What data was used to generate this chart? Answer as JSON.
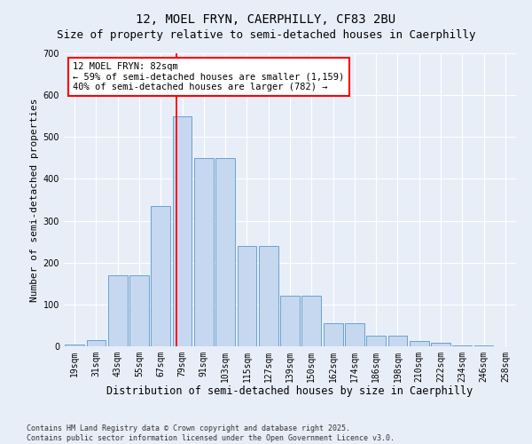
{
  "title1": "12, MOEL FRYN, CAERPHILLY, CF83 2BU",
  "title2": "Size of property relative to semi-detached houses in Caerphilly",
  "xlabel": "Distribution of semi-detached houses by size in Caerphilly",
  "ylabel": "Number of semi-detached properties",
  "categories": [
    "19sqm",
    "31sqm",
    "43sqm",
    "55sqm",
    "67sqm",
    "79sqm",
    "91sqm",
    "103sqm",
    "115sqm",
    "127sqm",
    "139sqm",
    "150sqm",
    "162sqm",
    "174sqm",
    "186sqm",
    "198sqm",
    "210sqm",
    "222sqm",
    "234sqm",
    "246sqm",
    "258sqm"
  ],
  "bar_heights": [
    5,
    15,
    170,
    170,
    335,
    550,
    450,
    450,
    240,
    240,
    120,
    120,
    55,
    55,
    25,
    25,
    12,
    8,
    2,
    2,
    0
  ],
  "bar_color": "#c5d8f0",
  "bar_edge_color": "#5a96c8",
  "vline_color": "red",
  "vline_pos": 4.72,
  "annotation_text": "12 MOEL FRYN: 82sqm\n← 59% of semi-detached houses are smaller (1,159)\n40% of semi-detached houses are larger (782) →",
  "annotation_box_color": "white",
  "annotation_box_edge": "red",
  "ylim": [
    0,
    700
  ],
  "yticks": [
    0,
    100,
    200,
    300,
    400,
    500,
    600,
    700
  ],
  "footer": "Contains HM Land Registry data © Crown copyright and database right 2025.\nContains public sector information licensed under the Open Government Licence v3.0.",
  "bg_color": "#e8eef8",
  "grid_color": "white",
  "title1_fontsize": 10,
  "title2_fontsize": 9,
  "xlabel_fontsize": 8.5,
  "ylabel_fontsize": 8,
  "tick_fontsize": 7,
  "annotation_fontsize": 7.5,
  "footer_fontsize": 6
}
